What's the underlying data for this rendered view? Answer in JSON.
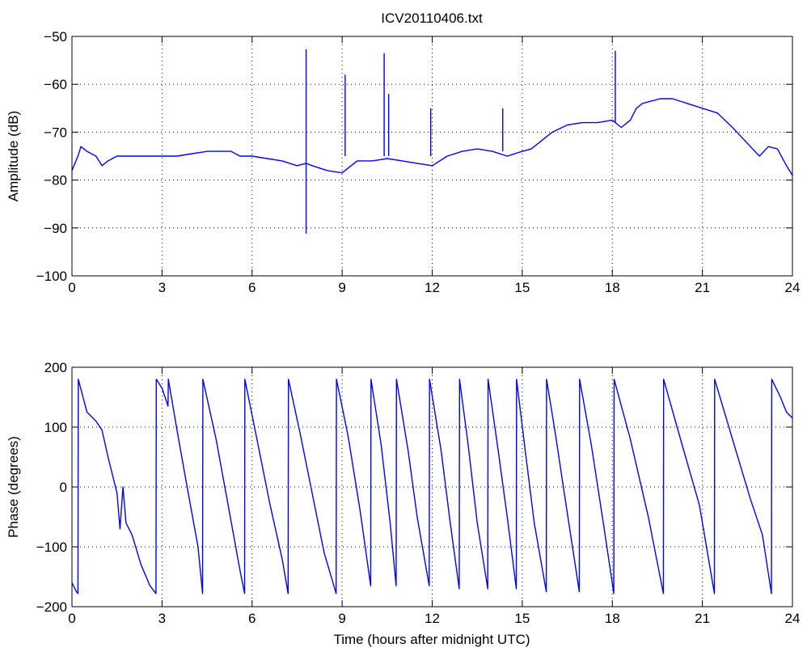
{
  "chart_data": [
    {
      "type": "line",
      "title": "ICV20110406.txt",
      "xlabel": "",
      "ylabel": "Amplitude (dB)",
      "xlim": [
        0,
        24
      ],
      "ylim": [
        -100,
        -50
      ],
      "xticks": [
        0,
        3,
        6,
        9,
        12,
        15,
        18,
        21,
        24
      ],
      "yticks": [
        -100,
        -90,
        -80,
        -70,
        -60,
        -50
      ],
      "grid": true,
      "line_color": "#0000ff",
      "series": [
        {
          "x": [
            0,
            0.2,
            0.3,
            0.5,
            0.8,
            1.0,
            1.2,
            1.5,
            2.0,
            2.5,
            3.0,
            3.5,
            4.0,
            4.5,
            5.0,
            5.3,
            5.6,
            6.0,
            6.5,
            7.0,
            7.5,
            7.8,
            8.0,
            8.5,
            9.0,
            9.5,
            10.0,
            10.5,
            11.0,
            11.5,
            12.0,
            12.5,
            13.0,
            13.5,
            14.0,
            14.5,
            15.0,
            15.3,
            15.6,
            16.0,
            16.5,
            17.0,
            17.5,
            18.0,
            18.3,
            18.6,
            18.8,
            19.0,
            19.3,
            19.6,
            20.0,
            20.5,
            21.0,
            21.5,
            22.0,
            22.3,
            22.6,
            22.9,
            23.2,
            23.5,
            23.8,
            24.0
          ],
          "y": [
            -78,
            -75,
            -73,
            -74,
            -75,
            -77,
            -76,
            -75,
            -75,
            -75,
            -75,
            -75,
            -74.5,
            -74,
            -74,
            -74,
            -75,
            -75,
            -75.5,
            -76,
            -77,
            -76.5,
            -77,
            -78,
            -78.5,
            -76,
            -76,
            -75.5,
            -76,
            -76.5,
            -77,
            -75,
            -74,
            -73.5,
            -74,
            -75,
            -74,
            -73.5,
            -72,
            -70,
            -68.5,
            -68,
            -68,
            -67.5,
            -69,
            -67.5,
            -65,
            -64,
            -63.5,
            -63,
            -63,
            -64,
            -65,
            -66,
            -69,
            -71,
            -73,
            -75,
            -73,
            -73.5,
            -77,
            -79
          ],
          "spikes": [
            {
              "x": 7.8,
              "top": -52.7,
              "bottom": -91.2
            },
            {
              "x": 9.1,
              "top": -58,
              "bottom": -75
            },
            {
              "x": 10.4,
              "top": -53.5,
              "bottom": -75
            },
            {
              "x": 10.55,
              "top": -62,
              "bottom": -75
            },
            {
              "x": 11.95,
              "top": -65,
              "bottom": -75
            },
            {
              "x": 14.35,
              "top": -65,
              "bottom": -74
            },
            {
              "x": 18.1,
              "top": -53,
              "bottom": -68
            }
          ]
        }
      ]
    },
    {
      "type": "line",
      "title": "",
      "xlabel": "Time (hours after midnight UTC)",
      "ylabel": "Phase (degrees)",
      "xlim": [
        0,
        24
      ],
      "ylim": [
        -200,
        200
      ],
      "xticks": [
        0,
        3,
        6,
        9,
        12,
        15,
        18,
        21,
        24
      ],
      "yticks": [
        -200,
        -100,
        0,
        100,
        200
      ],
      "grid": true,
      "line_color": "#0000ff",
      "series": [
        {
          "x": [
            0,
            0.1,
            0.15,
            0.2,
            0.21,
            0.5,
            0.8,
            1.0,
            1.2,
            1.5,
            1.6,
            1.7,
            1.8,
            2.0,
            2.3,
            2.6,
            2.8,
            2.81,
            3.0,
            3.2,
            3.21,
            3.5,
            3.8,
            4.2,
            4.35,
            4.36,
            4.8,
            5.2,
            5.6,
            5.75,
            5.76,
            6.2,
            6.6,
            7.0,
            7.2,
            7.21,
            7.6,
            8.0,
            8.4,
            8.8,
            8.81,
            9.2,
            9.6,
            9.95,
            9.96,
            10.3,
            10.6,
            10.8,
            10.81,
            11.2,
            11.5,
            11.9,
            11.91,
            12.3,
            12.6,
            12.9,
            12.91,
            13.2,
            13.5,
            13.85,
            13.86,
            14.2,
            14.5,
            14.8,
            14.81,
            15.1,
            15.4,
            15.8,
            15.81,
            16.1,
            16.4,
            16.9,
            16.91,
            17.3,
            17.7,
            18.05,
            18.06,
            18.6,
            19.2,
            19.7,
            19.71,
            20.3,
            20.9,
            21.4,
            21.41,
            22.0,
            22.6,
            23.0,
            23.3,
            23.31,
            23.6,
            23.8,
            24.0
          ],
          "y": [
            -160,
            -170,
            -175,
            -178,
            180,
            125,
            110,
            95,
            50,
            -10,
            -70,
            0,
            -60,
            -80,
            -130,
            -165,
            -178,
            180,
            165,
            135,
            180,
            95,
            10,
            -100,
            -178,
            180,
            80,
            -30,
            -140,
            -178,
            180,
            70,
            -30,
            -120,
            -178,
            180,
            90,
            -10,
            -110,
            -178,
            180,
            85,
            -40,
            -165,
            180,
            70,
            -60,
            -165,
            180,
            60,
            -50,
            -165,
            180,
            60,
            -60,
            -170,
            180,
            70,
            -60,
            -170,
            180,
            60,
            -50,
            -170,
            180,
            60,
            -60,
            -175,
            180,
            90,
            -10,
            -175,
            180,
            70,
            -60,
            -178,
            180,
            80,
            -50,
            -178,
            180,
            75,
            -30,
            -178,
            180,
            80,
            -20,
            -80,
            -178,
            180,
            150,
            125,
            115
          ]
        }
      ]
    }
  ]
}
